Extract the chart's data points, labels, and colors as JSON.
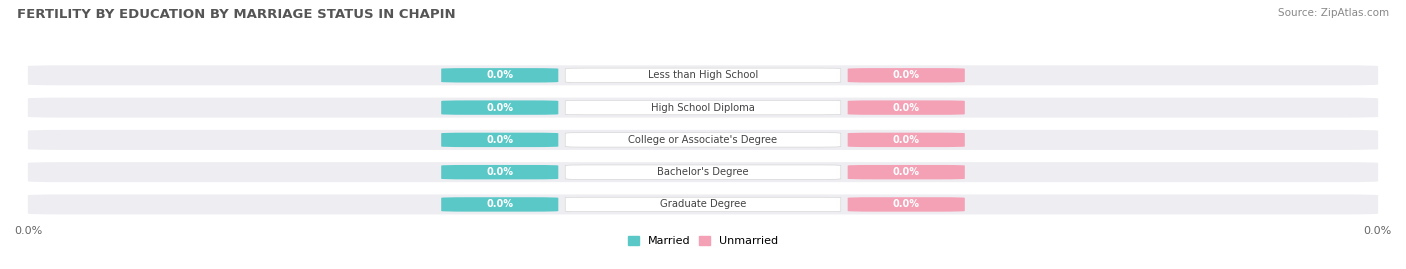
{
  "title": "FERTILITY BY EDUCATION BY MARRIAGE STATUS IN CHAPIN",
  "source": "Source: ZipAtlas.com",
  "categories": [
    "Less than High School",
    "High School Diploma",
    "College or Associate's Degree",
    "Bachelor's Degree",
    "Graduate Degree"
  ],
  "married_values": [
    0.0,
    0.0,
    0.0,
    0.0,
    0.0
  ],
  "unmarried_values": [
    0.0,
    0.0,
    0.0,
    0.0,
    0.0
  ],
  "married_color": "#5bc8c8",
  "unmarried_color": "#f4a0b5",
  "bar_bg_color": "#eeeef2",
  "category_text_color": "#444444",
  "title_color": "#555555",
  "source_color": "#888888",
  "tick_label": "0.0%",
  "figsize": [
    14.06,
    2.69
  ],
  "dpi": 100
}
